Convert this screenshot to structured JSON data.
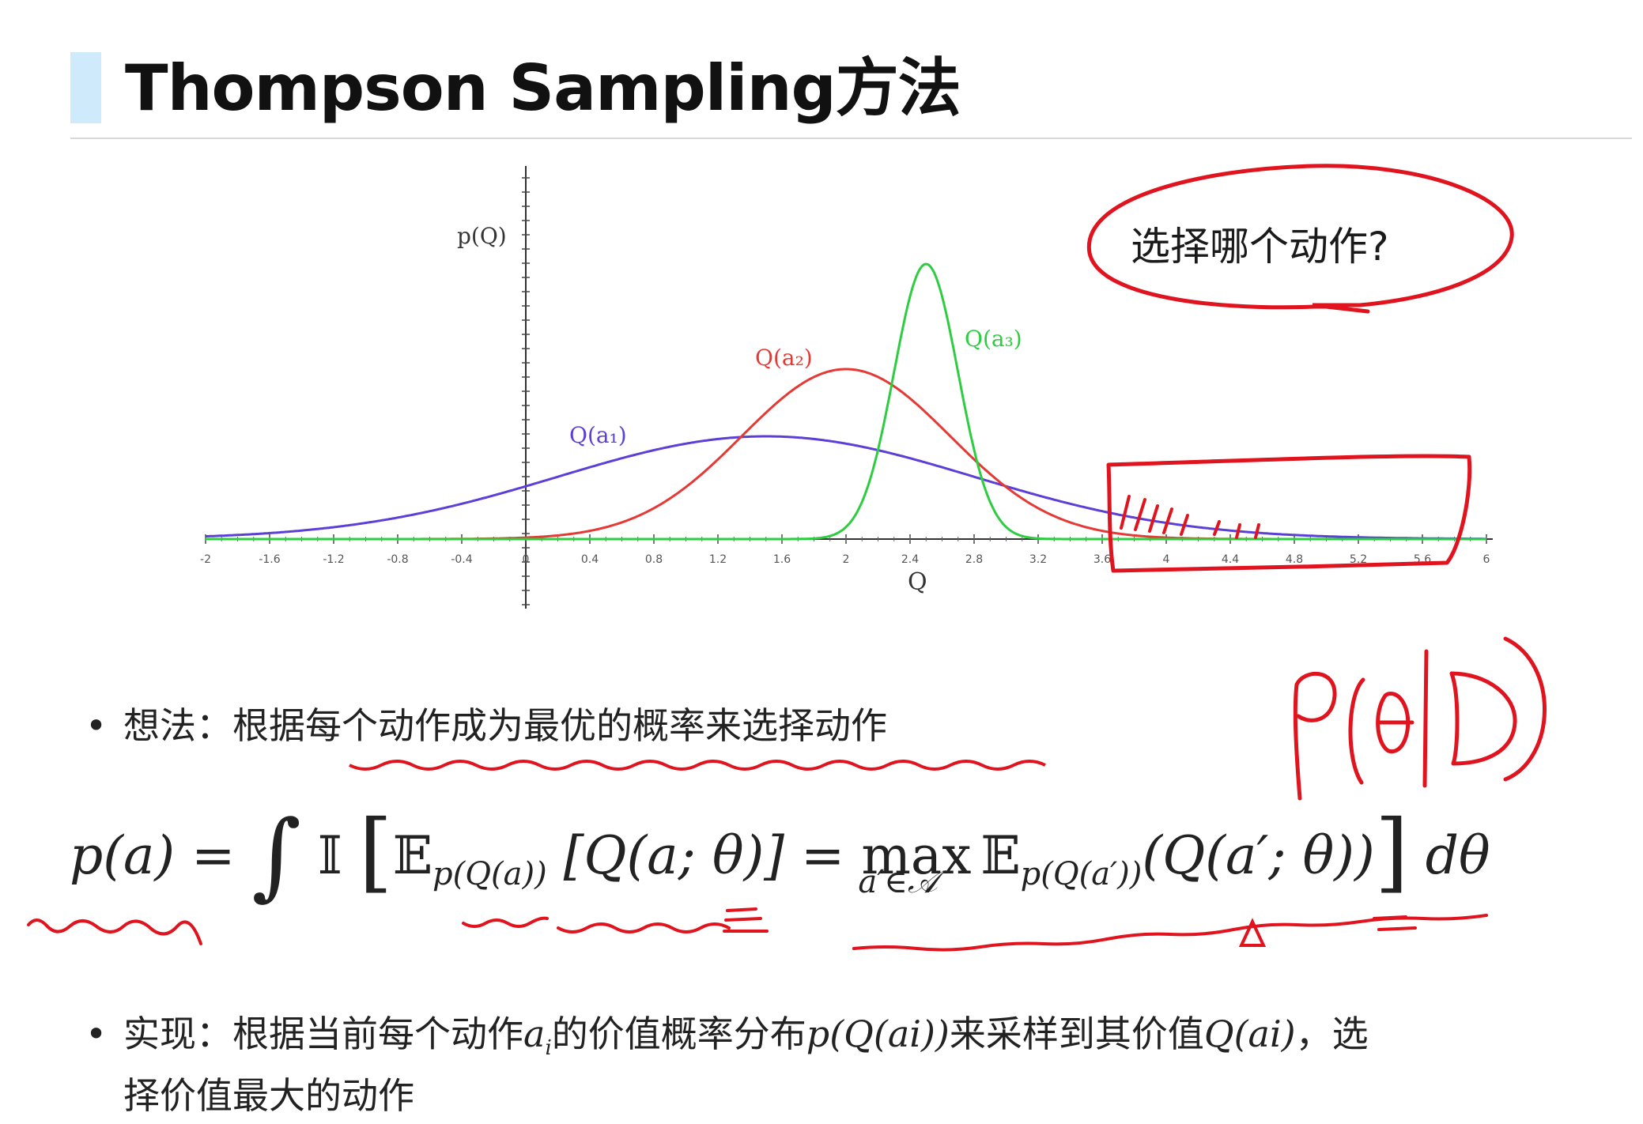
{
  "slide": {
    "title": "Thompson Sampling方法"
  },
  "chart_data": {
    "type": "line",
    "ylabel": "p(Q)",
    "xlabel": "Q",
    "x_ticks": [
      "-2",
      "-1.6",
      "-1.2",
      "-0.8",
      "-0.4",
      "0",
      "0.4",
      "0.8",
      "1.2",
      "1.6",
      "2",
      "2.4",
      "2.8",
      "3.2",
      "3.6",
      "4",
      "4.4",
      "4.8",
      "5.2",
      "5.6",
      "6"
    ],
    "xlim": [
      -2,
      6
    ],
    "series": [
      {
        "name": "Q(a₁)",
        "distribution": "normal",
        "mean": 1.5,
        "std": 1.3,
        "color": "#5b3fd6"
      },
      {
        "name": "Q(a₂)",
        "distribution": "normal",
        "mean": 2.0,
        "std": 0.65,
        "color": "#e53935"
      },
      {
        "name": "Q(a₃)",
        "distribution": "normal",
        "mean": 2.5,
        "std": 0.2,
        "color": "#2ecc40"
      }
    ],
    "grid": false
  },
  "annotations": {
    "bubble_text": "选择哪个动作?",
    "handwritten_formula": "p(θ|D)",
    "ink_color": "#e0141e"
  },
  "bullets": {
    "idea": "想法：根据每个动作成为最优的概率来选择动作",
    "implement_prefix": "实现：根据当前每个动作",
    "implement_ai": "a",
    "implement_ai_sub": "i",
    "implement_mid1": "的价值概率分布",
    "implement_pq": "p(Q(ai))",
    "implement_mid2": "来采样到其价值",
    "implement_q": "Q(ai)",
    "implement_suffix": "，选",
    "implement_line2": "择价值最大的动作"
  },
  "formula": {
    "lhs": "p(a)",
    "eq": "=",
    "integral": "∫",
    "indicator": "𝕀",
    "lbrack": "[",
    "E": "𝔼",
    "E_sub": "p(Q(a))",
    "inner": "[Q(a; θ)]",
    "eq2": "=",
    "max": "max",
    "max_sub": "a′∈𝒜",
    "E2": "𝔼",
    "E2_sub": "p(Q(a′))",
    "inner2": "(Q(a′; θ))",
    "rbrack": "]",
    "dtheta": "dθ"
  }
}
